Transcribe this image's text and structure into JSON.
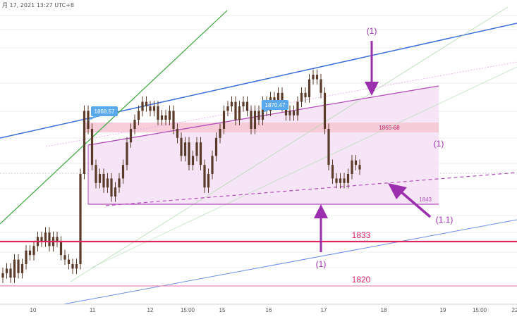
{
  "header": {
    "timestamp_text": "月 17, 2021 13:27 UTC+8"
  },
  "colors": {
    "candle": "#5a3a28",
    "channel_line": "#b34dbb",
    "channel_fill": "#f3e1f5",
    "resistance_zone": "#f7c9d6",
    "blue_line": "#3b6fe0",
    "blue_line_thin": "#6b8fe8",
    "green_line": "#3aa63a",
    "support_red": "#e0245e",
    "support_pink": "#e98ab5",
    "annotation": "#9b2fae",
    "callout": "#5aa9ef"
  },
  "chart_data": {
    "type": "candlestick",
    "x_tick_labels": [
      "10",
      "11",
      "12",
      "15:00",
      "15",
      "16",
      "17",
      "18",
      "19",
      "15:00",
      "22"
    ],
    "price_callouts": [
      {
        "label": "1868.57",
        "time": "11"
      },
      {
        "label": "1870.47",
        "time": "16"
      }
    ],
    "zones": [
      {
        "label": "1865-68",
        "low": 1865,
        "high": 1868
      }
    ],
    "levels": [
      {
        "label": "1843",
        "value": 1843
      },
      {
        "label": "1833",
        "value": 1833
      },
      {
        "label": "1820",
        "value": 1820
      }
    ],
    "annotations": [
      "(1)",
      "(1)",
      "(1)",
      "(1.1)"
    ],
    "close_series": [
      1826,
      1827,
      1825,
      1829,
      1826,
      1828,
      1831,
      1830,
      1832,
      1834,
      1833,
      1835,
      1832,
      1834,
      1833,
      1830,
      1829,
      1828,
      1827,
      1828,
      1848,
      1862,
      1858,
      1850,
      1846,
      1848,
      1845,
      1847,
      1843,
      1845,
      1847,
      1850,
      1855,
      1858,
      1860,
      1862,
      1864,
      1863,
      1862,
      1863,
      1860,
      1861,
      1860,
      1862,
      1858,
      1856,
      1852,
      1855,
      1850,
      1852,
      1855,
      1850,
      1845,
      1848,
      1852,
      1856,
      1858,
      1862,
      1863,
      1864,
      1860,
      1863,
      1864,
      1862,
      1858,
      1862,
      1860,
      1864,
      1862,
      1865,
      1864,
      1866,
      1863,
      1861,
      1862,
      1861,
      1864,
      1866,
      1865,
      1869,
      1870,
      1869,
      1866,
      1858,
      1850,
      1847,
      1846,
      1847,
      1846,
      1848,
      1851,
      1850,
      1849
    ]
  }
}
